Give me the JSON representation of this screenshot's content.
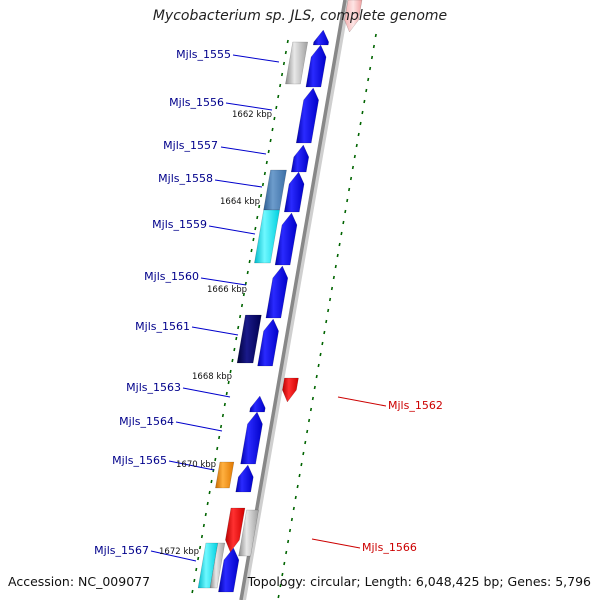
{
  "title": "Mycobacterium sp. JLS, complete genome",
  "footer": {
    "accession": "Accession: NC_009077",
    "topology": "Topology: circular; Length: 6,048,425 bp; Genes: 5,796"
  },
  "genes_left": [
    {
      "label": "Mjls_1555",
      "color": "#aaaaaa"
    },
    {
      "label": "Mjls_1556",
      "color": "#0000ee"
    },
    {
      "label": "Mjls_1557",
      "color": "#0000ee"
    },
    {
      "label": "Mjls_1558",
      "color": "#4a7fb5"
    },
    {
      "label": "Mjls_1559",
      "color": "#00e5ee"
    },
    {
      "label": "Mjls_1560",
      "color": "#0000ee"
    },
    {
      "label": "Mjls_1561",
      "color": "#000080"
    },
    {
      "label": "Mjls_1563",
      "color": "#0000ee"
    },
    {
      "label": "Mjls_1564",
      "color": "#0000ee"
    },
    {
      "label": "Mjls_1565",
      "color": "#ff8c00"
    },
    {
      "label": "Mjls_1567",
      "color": "#00e5ee"
    }
  ],
  "genes_right": [
    {
      "label": "Mjls_1562",
      "color": "#ee0000"
    },
    {
      "label": "Mjls_1566",
      "color": "#ee0000"
    }
  ],
  "kbp_ticks": [
    "1662 kbp",
    "1664 kbp",
    "1666 kbp",
    "1668 kbp",
    "1670 kbp",
    "1672 kbp"
  ],
  "colors": {
    "left_label": "#00008b",
    "right_label": "#cc0000",
    "tick": "#006400",
    "axis": "#888888"
  }
}
